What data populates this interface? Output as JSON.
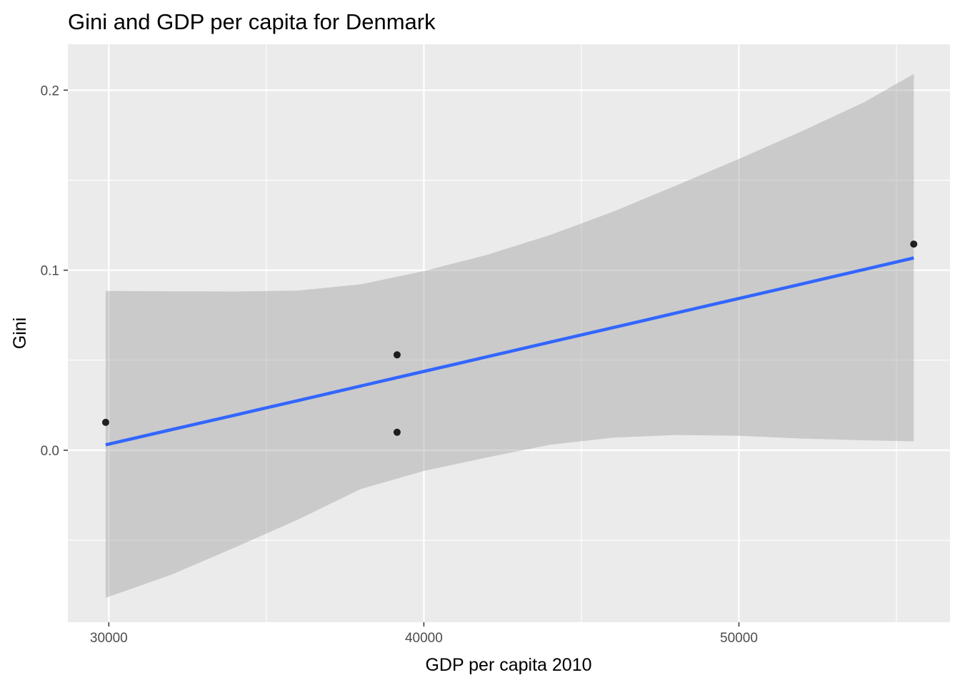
{
  "chart_data": {
    "type": "scatter",
    "title": "Gini and GDP per capita for Denmark",
    "xlabel": "GDP per capita 2010",
    "ylabel": "Gini",
    "xlim": [
      28700,
      56700
    ],
    "ylim": [
      -0.0955,
      0.2255
    ],
    "x_ticks": [
      30000,
      40000,
      50000
    ],
    "x_tick_labels": [
      "30000",
      "40000",
      "50000"
    ],
    "x_minor_ticks": [
      35000,
      45000,
      55000
    ],
    "y_ticks": [
      0.0,
      0.1,
      0.2
    ],
    "y_tick_labels": [
      "0.0",
      "0.1",
      "0.2"
    ],
    "y_minor_ticks": [
      -0.05,
      0.05,
      0.15
    ],
    "grid": true,
    "legend": "none",
    "points": [
      {
        "x": 29900,
        "y": 0.0155
      },
      {
        "x": 39150,
        "y": 0.053
      },
      {
        "x": 39150,
        "y": 0.01
      },
      {
        "x": 55550,
        "y": 0.1145
      }
    ],
    "fit_line": {
      "method": "linear regression",
      "x": [
        29900,
        32000,
        34000,
        36000,
        38000,
        40000,
        42000,
        44000,
        46000,
        48000,
        50000,
        52000,
        54000,
        55550
      ],
      "y": [
        0.003,
        0.0115,
        0.0195,
        0.0276,
        0.0357,
        0.0438,
        0.0519,
        0.06,
        0.0681,
        0.0762,
        0.0843,
        0.0924,
        0.1005,
        0.1068
      ]
    },
    "confidence_band": {
      "x": [
        29900,
        32000,
        34000,
        36000,
        38000,
        40000,
        42000,
        44000,
        46000,
        48000,
        50000,
        52000,
        54000,
        55550
      ],
      "upper": [
        0.0885,
        0.0883,
        0.0882,
        0.0887,
        0.0922,
        0.0995,
        0.1085,
        0.1195,
        0.1325,
        0.147,
        0.1618,
        0.1772,
        0.1935,
        0.209
      ],
      "lower": [
        -0.082,
        -0.069,
        -0.054,
        -0.0385,
        -0.0215,
        -0.0115,
        -0.004,
        0.003,
        0.007,
        0.0085,
        0.008,
        0.0065,
        0.0055,
        0.005
      ]
    },
    "colors": {
      "panel_background": "#ebebeb",
      "grid_major": "#ffffff",
      "fit_line": "#3366ff",
      "band_fill": "#999999",
      "points": "#000000",
      "tick_marks": "#333333"
    }
  }
}
